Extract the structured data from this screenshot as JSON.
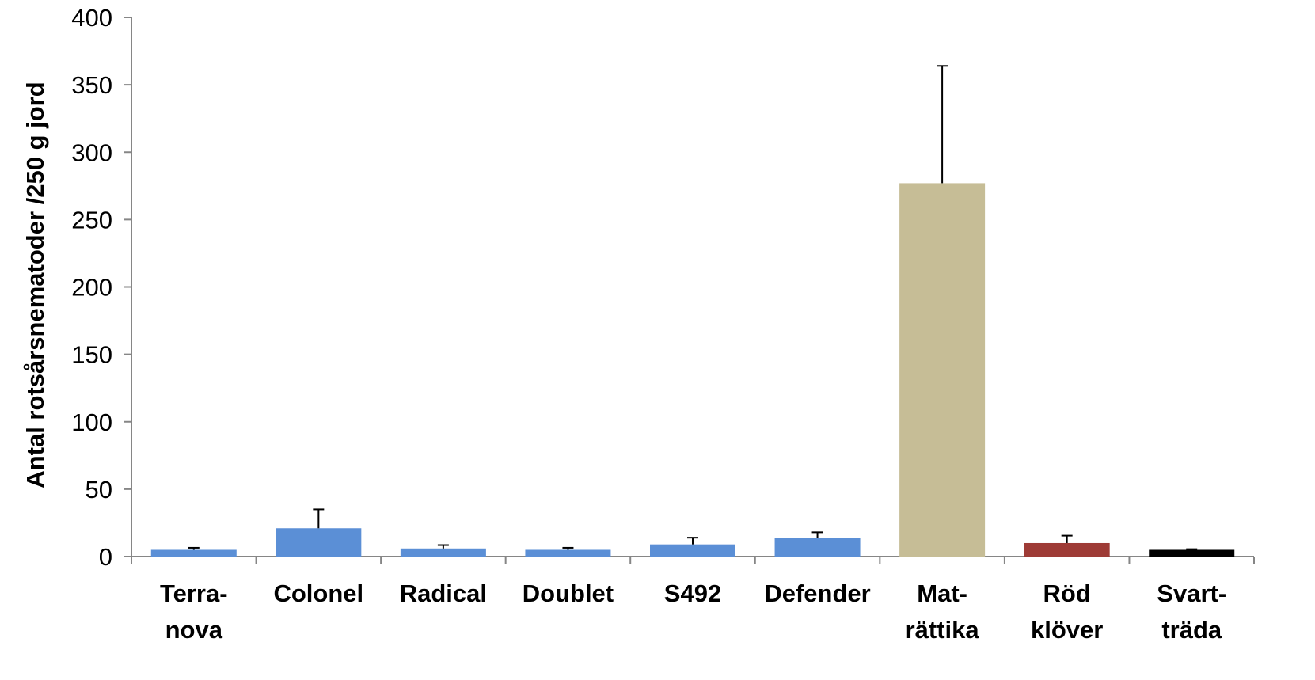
{
  "chart_data": {
    "type": "bar",
    "title": "",
    "xlabel": "",
    "ylabel": "Antal rotsårsnematoder /250 g jord",
    "ylim": [
      0,
      400
    ],
    "yticks": [
      0,
      50,
      100,
      150,
      200,
      250,
      300,
      350,
      400
    ],
    "grid": false,
    "legend": "none",
    "categories": [
      [
        "Terra-",
        "nova"
      ],
      [
        "Colonel"
      ],
      [
        "Radical"
      ],
      [
        "Doublet"
      ],
      [
        "S492"
      ],
      [
        "Defender"
      ],
      [
        "Mat-",
        "rättika"
      ],
      [
        "Röd",
        "klöver"
      ],
      [
        "Svart-",
        "träda"
      ]
    ],
    "values": [
      5,
      21,
      6,
      5,
      9,
      14,
      277,
      10,
      5
    ],
    "error_plus": [
      1.5,
      14,
      2.5,
      1.5,
      5,
      4,
      87,
      5.5,
      0.5
    ],
    "colors": [
      "#5b8fd6",
      "#5b8fd6",
      "#5b8fd6",
      "#5b8fd6",
      "#5b8fd6",
      "#5b8fd6",
      "#c6bd96",
      "#9e3b36",
      "#000000"
    ]
  }
}
